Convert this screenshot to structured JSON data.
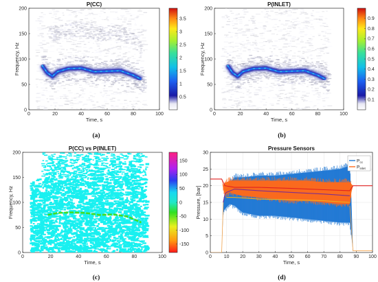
{
  "chart_data": [
    {
      "type": "heatmap",
      "panel_label": "(a)",
      "title": "P(CC)",
      "xlabel": "Time, s",
      "ylabel": "Frequency, Hz",
      "xlim": [
        0,
        100
      ],
      "ylim": [
        0,
        200
      ],
      "xticks": [
        0,
        20,
        40,
        60,
        80,
        100
      ],
      "yticks": [
        0,
        50,
        100,
        150,
        200
      ],
      "colormap": "parula-jet",
      "colorbar": {
        "ticks": [
          0.5,
          1,
          1.5,
          2,
          2.5,
          3,
          3.5
        ],
        "range": [
          0,
          3.9
        ]
      },
      "ridge": {
        "x": [
          10,
          14,
          18,
          22,
          30,
          40,
          50,
          60,
          70,
          80,
          86
        ],
        "y": [
          88,
          73,
          66,
          75,
          81,
          82,
          75,
          76,
          77,
          68,
          60
        ]
      },
      "harmonic_band": {
        "x": [
          15,
          25,
          40,
          55,
          65,
          80,
          86
        ],
        "y": [
          148,
          155,
          160,
          150,
          156,
          140,
          115
        ]
      },
      "signal_span": [
        5,
        88
      ]
    },
    {
      "type": "heatmap",
      "panel_label": "(b)",
      "title": "P(INLET)",
      "xlabel": "Time, s",
      "ylabel": "Frequency, Hz",
      "xlim": [
        0,
        100
      ],
      "ylim": [
        0,
        200
      ],
      "xticks": [
        0,
        20,
        40,
        60,
        80,
        100
      ],
      "yticks": [
        0,
        50,
        100,
        150,
        200
      ],
      "colormap": "parula-jet",
      "colorbar": {
        "ticks": [
          0.1,
          0.2,
          0.3,
          0.4,
          0.5,
          0.6,
          0.7,
          0.8,
          0.9
        ],
        "range": [
          0,
          1
        ]
      },
      "ridge": {
        "x": [
          10,
          14,
          18,
          22,
          30,
          40,
          50,
          60,
          70,
          80,
          86
        ],
        "y": [
          88,
          73,
          66,
          75,
          81,
          82,
          75,
          76,
          77,
          68,
          60
        ]
      },
      "signal_span": [
        5,
        88
      ]
    },
    {
      "type": "heatmap",
      "panel_label": "(c)",
      "title": "P(CC) vs P(INLET)",
      "xlabel": "Time, s",
      "ylabel": "Frequency, Hz",
      "xlim": [
        0,
        100
      ],
      "ylim": [
        0,
        200
      ],
      "xticks": [
        0,
        20,
        40,
        60,
        80,
        100
      ],
      "yticks": [
        0,
        50,
        100,
        150,
        200
      ],
      "colormap": "hsv-phase",
      "colorbar": {
        "ticks": [
          150,
          100,
          50,
          0,
          -50,
          -100,
          -150
        ],
        "range": [
          -180,
          180
        ]
      },
      "fill_color": "#19f0f0",
      "ridge": {
        "x": [
          18,
          25,
          35,
          45,
          55,
          65,
          75,
          85
        ],
        "y": [
          75,
          79,
          80,
          79,
          75,
          76,
          72,
          60
        ],
        "color": "#44dd22"
      },
      "signal_span": [
        5,
        88
      ]
    },
    {
      "type": "line",
      "panel_label": "(d)",
      "title": "Pressure Sensors",
      "xlabel": "Time, s",
      "ylabel": "Pressure, [bar]",
      "xlim": [
        0,
        100
      ],
      "ylim": [
        0,
        30
      ],
      "xticks": [
        0,
        10,
        20,
        30,
        40,
        50,
        60,
        70,
        80,
        90,
        100
      ],
      "yticks": [
        0,
        5,
        10,
        15,
        20,
        25,
        30
      ],
      "legend": {
        "placement": "top-right",
        "entries": [
          {
            "main": "P",
            "sub": "cc",
            "color": "#1f77d4"
          },
          {
            "main": "P",
            "sub": "inlet",
            "color": "#ff6a1a"
          }
        ]
      },
      "series": [
        {
          "name": "Pcc",
          "color": "#1f77d4",
          "x": [
            0,
            7,
            8,
            9,
            10,
            12,
            15,
            20,
            30,
            40,
            50,
            60,
            70,
            80,
            86,
            87,
            88,
            100
          ],
          "upper": [
            0,
            0,
            15,
            18,
            19,
            21,
            22.5,
            22.5,
            23,
            23,
            23.5,
            24,
            24.5,
            25,
            26,
            16,
            0,
            0
          ],
          "lower": [
            0,
            0,
            12,
            13,
            13.5,
            14.5,
            14,
            12,
            11,
            11,
            10.5,
            10,
            9.5,
            9,
            9,
            5,
            0,
            0
          ]
        },
        {
          "name": "Pinlet",
          "color": "#ff6a1a",
          "x": [
            0,
            7,
            8,
            9,
            10,
            12,
            15,
            20,
            30,
            40,
            50,
            60,
            70,
            80,
            86,
            87,
            88,
            100
          ],
          "upper": [
            22,
            22,
            20,
            21,
            21,
            21.5,
            21.5,
            21.5,
            21.5,
            21.5,
            21.5,
            21.5,
            21,
            21,
            21,
            20.5,
            20,
            20
          ],
          "lower": [
            22,
            22,
            19,
            17,
            17.5,
            18,
            17.5,
            17,
            16.5,
            16,
            15.5,
            15.5,
            15,
            14.5,
            14.5,
            18,
            20,
            20
          ]
        },
        {
          "name": "mean-line",
          "color": "#7e2f8e",
          "x": [
            8,
            9,
            10,
            15,
            30,
            50,
            70,
            86
          ],
          "y": [
            15,
            17.5,
            18,
            19,
            18.5,
            18,
            17.5,
            17
          ]
        },
        {
          "name": "lower-mean",
          "color": "#edb120",
          "x": [
            10,
            15,
            30,
            50,
            70,
            86
          ],
          "y": [
            16.5,
            16.5,
            16,
            15.8,
            15.5,
            15
          ]
        },
        {
          "name": "red-line",
          "color": "#e02020",
          "x": [
            0,
            7,
            9,
            15,
            30,
            50,
            70,
            86,
            88,
            100
          ],
          "y": [
            22,
            22,
            20,
            19.5,
            19.5,
            19.2,
            18.8,
            18.5,
            20,
            20
          ]
        }
      ]
    }
  ]
}
